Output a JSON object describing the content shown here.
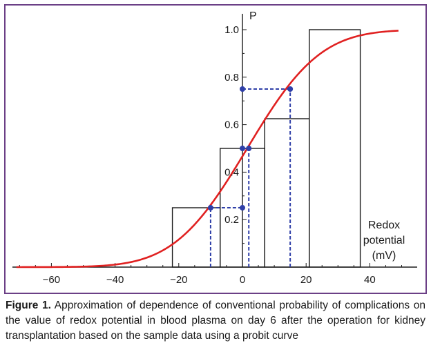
{
  "chart_data": {
    "type": "line",
    "xlabel": [
      "Redox",
      "potential",
      "(mV)"
    ],
    "ylabel": "P",
    "xlim": [
      -72,
      52
    ],
    "ylim": [
      0,
      1.05
    ],
    "x_ticks": [
      -60,
      -40,
      -20,
      0,
      20,
      40
    ],
    "x_tick_labels": [
      "−60",
      "−40",
      "−20",
      "0",
      "20",
      "40"
    ],
    "y_ticks": [
      0.2,
      0.4,
      0.6,
      0.8,
      1.0
    ],
    "y_tick_labels": [
      "0.2",
      "0.4",
      "0.6",
      "0.8",
      "1.0"
    ],
    "grid": false,
    "curve": {
      "color": "#e02020",
      "mu": 1.5,
      "sigma": 18.0,
      "x_range": [
        -71,
        49
      ]
    },
    "histogram": {
      "color": "#1a1a1a",
      "bins": [
        {
          "x0": -22,
          "x1": -7,
          "p": 0.25
        },
        {
          "x0": -7,
          "x1": 7,
          "p": 0.5
        },
        {
          "x0": 7,
          "x1": 21,
          "p": 0.625
        },
        {
          "x0": 21,
          "x1": 37,
          "p": 1.0
        }
      ]
    },
    "markers": {
      "color": "#2f3fa8",
      "points": [
        {
          "x": -10,
          "y": 0.25
        },
        {
          "x": 0,
          "y": 0.25
        },
        {
          "x": 0,
          "y": 0.5
        },
        {
          "x": 2,
          "y": 0.5
        },
        {
          "x": 0,
          "y": 0.75
        },
        {
          "x": 15,
          "y": 0.75
        }
      ],
      "dashed_segments": [
        {
          "from": [
            -10,
            0
          ],
          "to": [
            -10,
            0.25
          ]
        },
        {
          "from": [
            -10,
            0.25
          ],
          "to": [
            0,
            0.25
          ]
        },
        {
          "from": [
            0,
            0.5
          ],
          "to": [
            2,
            0.5
          ]
        },
        {
          "from": [
            2,
            0
          ],
          "to": [
            2,
            0.5
          ]
        },
        {
          "from": [
            0,
            0.75
          ],
          "to": [
            15,
            0.75
          ]
        },
        {
          "from": [
            15,
            0
          ],
          "to": [
            15,
            0.75
          ]
        }
      ]
    }
  },
  "caption": {
    "label": "Figure 1.",
    "text": " Approximation of dependence of conventional probability of complications on the value of redox potential in blood plasma on day 6 after the operation for kidney transplantation based on the sample data using a probit curve"
  }
}
